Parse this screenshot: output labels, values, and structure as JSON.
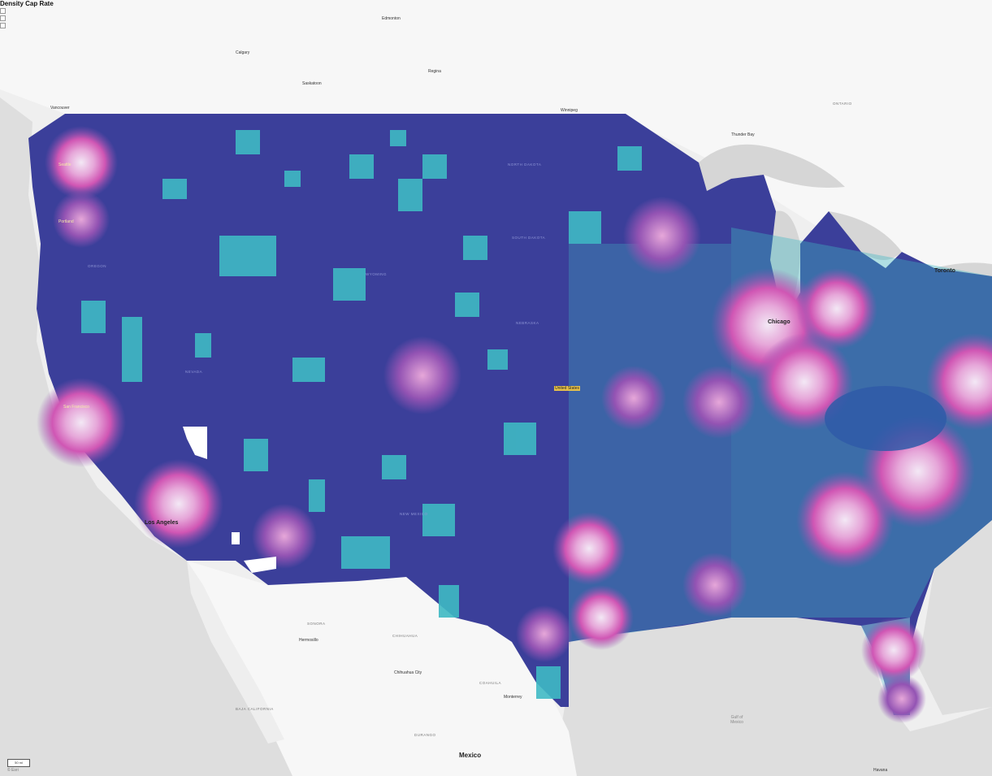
{
  "header": {
    "title": "Density Cap Rate"
  },
  "scale_bar": {
    "label": "50 mi"
  },
  "attribution": "© Esri",
  "colors": {
    "water": "#dcdcdc",
    "land": "#f6f6f6",
    "base_dark": "#3b3f9a",
    "teal": "#3fb9c4",
    "light_teal": "#8ed3dc",
    "purple": "#9353b3",
    "magenta": "#d056b4",
    "pink_light": "#e6a7d9",
    "white_core": "#f3e8f5",
    "mid_blue": "#2f5aa8"
  },
  "cities": {
    "calgary": "Calgary",
    "edmonton": "Edmonton",
    "regina": "Regina",
    "winnipeg": "Winnipeg",
    "saskatoon": "Saskatoon",
    "vancouver": "Vancouver",
    "seattle": "Seattle",
    "portland": "Portland",
    "san_francisco": "San Francisco",
    "los_angeles": "Los Angeles",
    "chicago": "Chicago",
    "toronto": "Toronto",
    "thunder_bay": "Thunder Bay",
    "united_states": "United States",
    "chihuahua": "Chihuahua City",
    "mexico": "Mexico",
    "hermosillo": "Hermosillo",
    "monterrey": "Monterrey",
    "havana": "Havana",
    "gulf": "Gulf of\nMexico"
  },
  "regions": {
    "ontario": "ONTARIO",
    "oregon": "OREGON",
    "nevada": "NEVADA",
    "wyoming": "WYOMING",
    "nebraska": "NEBRASKA",
    "north_dakota": "NORTH DAKOTA",
    "south_dakota": "SOUTH DAKOTA",
    "new_mexico": "NEW MEXICO",
    "sonora": "SONORA",
    "chihuahua": "CHIHUAHUA",
    "coahuila": "COAHUILA",
    "durango": "DURANGO",
    "baja_california": "BAJA CALIFORNIA"
  }
}
